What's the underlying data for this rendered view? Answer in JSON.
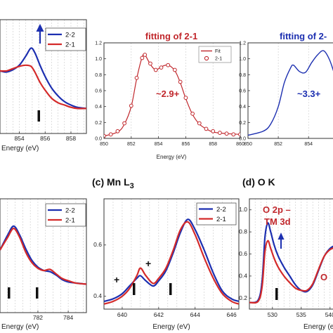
{
  "panels": [
    {
      "id": "mn-l3-top",
      "chart_data": {
        "type": "line",
        "xlabel": "Energy (eV)",
        "x_ticks": [
          "854",
          "856",
          "858"
        ],
        "xlim": [
          852.5,
          859.2
        ],
        "ylim": [
          0,
          1
        ],
        "legend": [
          {
            "name": "2-2",
            "color": "#1c2fb0"
          },
          {
            "name": "2-1",
            "color": "#d42a2a"
          }
        ],
        "series": [
          {
            "name": "2-2",
            "color": "#1c2fb0",
            "x": [
              852.5,
              853.0,
              853.5,
              854.0,
              854.5,
              854.9,
              855.2,
              855.6,
              856.0,
              856.5,
              857.0,
              857.5,
              858.0,
              858.5,
              859.2
            ],
            "y": [
              0.55,
              0.54,
              0.56,
              0.6,
              0.68,
              0.75,
              0.71,
              0.6,
              0.5,
              0.4,
              0.33,
              0.28,
              0.25,
              0.23,
              0.22
            ]
          },
          {
            "name": "2-1",
            "color": "#d42a2a",
            "x": [
              852.5,
              853.0,
              853.5,
              854.0,
              854.5,
              854.9,
              855.2,
              855.6,
              856.0,
              856.5,
              857.0,
              857.5,
              858.0,
              858.5,
              859.2
            ],
            "y": [
              0.55,
              0.55,
              0.57,
              0.59,
              0.6,
              0.59,
              0.54,
              0.45,
              0.38,
              0.31,
              0.27,
              0.25,
              0.23,
              0.22,
              0.22
            ]
          }
        ]
      }
    },
    {
      "id": "fit-2-1",
      "chart_data": {
        "type": "line",
        "title": "fitting of 2-1",
        "annotation": "~2.9+",
        "xlabel": "Energy (eV)",
        "x_ticks": [
          "850",
          "852",
          "854",
          "856",
          "858",
          "860"
        ],
        "y_ticks": [
          "0.0",
          "0.2",
          "0.4",
          "0.6",
          "0.8",
          "1.0",
          "1.2"
        ],
        "xlim": [
          850,
          860
        ],
        "ylim": [
          0,
          1.2
        ],
        "legend": [
          {
            "name": "Fit",
            "marker": "line"
          },
          {
            "name": "2-1",
            "marker": "circle"
          }
        ],
        "series": [
          {
            "name": "Fit",
            "color": "#c0262b",
            "x": [
              850.0,
              851.0,
              851.5,
              852.0,
              852.4,
              852.8,
              853.0,
              853.4,
              853.8,
              854.2,
              854.7,
              855.2,
              855.6,
              856.0,
              856.5,
              857.0,
              857.5,
              858.0,
              859.0,
              860.0
            ],
            "y": [
              0.03,
              0.08,
              0.18,
              0.4,
              0.75,
              1.02,
              1.05,
              0.93,
              0.86,
              0.9,
              0.92,
              0.85,
              0.7,
              0.5,
              0.3,
              0.18,
              0.12,
              0.08,
              0.06,
              0.05
            ]
          },
          {
            "name": "2-1",
            "color": "#c0262b",
            "x": [
              850.0,
              850.5,
              851.0,
              851.5,
              852.0,
              852.4,
              852.8,
              853.0,
              853.4,
              853.8,
              854.2,
              854.7,
              855.2,
              855.6,
              856.0,
              856.5,
              857.0,
              857.5,
              858.0,
              858.5,
              859.0,
              859.5,
              860.0
            ],
            "y": [
              0.03,
              0.05,
              0.09,
              0.19,
              0.41,
              0.76,
              1.01,
              1.05,
              0.94,
              0.86,
              0.89,
              0.92,
              0.86,
              0.71,
              0.51,
              0.31,
              0.19,
              0.12,
              0.09,
              0.07,
              0.06,
              0.05,
              0.05
            ]
          }
        ]
      }
    },
    {
      "id": "fit-2-2",
      "chart_data": {
        "type": "line",
        "title": "fitting of 2-",
        "annotation": "~3.3+",
        "xlabel": "",
        "x_ticks": [
          "850",
          "852",
          "854"
        ],
        "y_ticks": [
          "0.0",
          "0.2",
          "0.4",
          "0.6",
          "0.8",
          "1.0",
          "1.2"
        ],
        "xlim": [
          850,
          855.8
        ],
        "ylim": [
          0,
          1.2
        ],
        "series": [
          {
            "name": "2-2",
            "color": "#1c2fb0",
            "x": [
              850.0,
              851.0,
              851.5,
              852.0,
              852.4,
              852.8,
              853.0,
              853.4,
              853.8,
              854.2,
              854.6,
              855.0,
              855.4,
              855.8
            ],
            "y": [
              0.04,
              0.09,
              0.18,
              0.4,
              0.7,
              0.88,
              0.92,
              0.84,
              0.83,
              0.95,
              1.05,
              1.1,
              0.98,
              0.75
            ]
          }
        ]
      }
    },
    {
      "id": "mn-l2",
      "chart_data": {
        "type": "line",
        "xlabel": "Energy (eV)",
        "x_ticks": [
          "782",
          "784"
        ],
        "xlim": [
          779.5,
          785.2
        ],
        "ylim": [
          0,
          1
        ],
        "legend": [
          {
            "name": "2-2",
            "color": "#1c2fb0"
          },
          {
            "name": "2-1",
            "color": "#d42a2a"
          }
        ],
        "series": [
          {
            "name": "2-2",
            "color": "#1c2fb0",
            "x": [
              779.5,
              780.0,
              780.4,
              780.8,
              781.2,
              781.6,
              782.0,
              782.4,
              782.8,
              783.2,
              783.6,
              784.0,
              784.5,
              785.2
            ],
            "y": [
              0.55,
              0.68,
              0.76,
              0.68,
              0.56,
              0.46,
              0.4,
              0.37,
              0.36,
              0.33,
              0.29,
              0.27,
              0.26,
              0.25
            ]
          },
          {
            "name": "2-1",
            "color": "#d42a2a",
            "x": [
              779.5,
              780.0,
              780.4,
              780.8,
              781.2,
              781.6,
              782.0,
              782.4,
              782.8,
              783.2,
              783.6,
              784.0,
              784.5,
              785.2
            ],
            "y": [
              0.55,
              0.66,
              0.74,
              0.66,
              0.53,
              0.44,
              0.39,
              0.37,
              0.38,
              0.34,
              0.3,
              0.28,
              0.26,
              0.25
            ]
          }
        ]
      }
    },
    {
      "id": "c-mn-l3",
      "title": "(c) Mn L3",
      "chart_data": {
        "type": "line",
        "xlabel": "Energy (eV)",
        "x_ticks": [
          "640",
          "642",
          "644",
          "646"
        ],
        "y_ticks": [
          "0.4",
          "0.6"
        ],
        "xlim": [
          639.0,
          646.4
        ],
        "ylim": [
          0.35,
          0.78
        ],
        "legend": [
          {
            "name": "2-2",
            "color": "#1c2fb0"
          },
          {
            "name": "2-1",
            "color": "#d42a2a"
          }
        ],
        "annotations": [
          "+",
          "+"
        ],
        "series": [
          {
            "name": "2-2",
            "color": "#1c2fb0",
            "x": [
              639.0,
              639.5,
              640.0,
              640.4,
              640.8,
              641.0,
              641.3,
              641.7,
              642.0,
              642.4,
              642.8,
              643.2,
              643.6,
              644.0,
              644.5,
              645.0,
              645.5,
              646.0,
              646.4
            ],
            "y": [
              0.38,
              0.39,
              0.41,
              0.44,
              0.47,
              0.48,
              0.46,
              0.44,
              0.46,
              0.5,
              0.57,
              0.65,
              0.7,
              0.66,
              0.58,
              0.49,
              0.42,
              0.39,
              0.38
            ]
          },
          {
            "name": "2-1",
            "color": "#d42a2a",
            "x": [
              639.0,
              639.5,
              640.0,
              640.4,
              640.8,
              641.0,
              641.3,
              641.7,
              642.0,
              642.4,
              642.8,
              643.2,
              643.6,
              644.0,
              644.5,
              645.0,
              645.5,
              646.0,
              646.4
            ],
            "y": [
              0.37,
              0.38,
              0.4,
              0.43,
              0.48,
              0.51,
              0.48,
              0.45,
              0.47,
              0.51,
              0.58,
              0.66,
              0.69,
              0.64,
              0.55,
              0.47,
              0.41,
              0.38,
              0.37
            ]
          }
        ]
      }
    },
    {
      "id": "d-o-k",
      "title": "(d) O K",
      "chart_data": {
        "type": "line",
        "xlabel": "Energy (eV)",
        "x_ticks": [
          "530",
          "535",
          "540"
        ],
        "y_ticks": [
          "0.2",
          "0.4",
          "0.6",
          "0.8",
          "1.0"
        ],
        "xlim": [
          526,
          541
        ],
        "ylim": [
          0.1,
          1.1
        ],
        "annotations": [
          "O 2p –",
          "TM 3d",
          "O"
        ],
        "series": [
          {
            "name": "2-2",
            "color": "#1c2fb0",
            "x": [
              526.0,
              527.5,
              528.2,
              528.7,
              529.2,
              529.7,
              530.3,
              531.0,
              532.0,
              533.0,
              534.0,
              535.0,
              536.0,
              537.0,
              538.0,
              539.0,
              540.0,
              541.0
            ],
            "y": [
              0.16,
              0.18,
              0.35,
              0.75,
              0.88,
              0.8,
              0.68,
              0.58,
              0.48,
              0.4,
              0.32,
              0.27,
              0.26,
              0.32,
              0.45,
              0.58,
              0.65,
              0.68
            ]
          },
          {
            "name": "2-1",
            "color": "#d42a2a",
            "x": [
              526.0,
              527.5,
              528.2,
              528.7,
              529.2,
              529.7,
              530.3,
              531.0,
              532.0,
              533.0,
              534.0,
              535.0,
              536.0,
              537.0,
              538.0,
              539.0,
              540.0,
              541.0
            ],
            "y": [
              0.16,
              0.17,
              0.3,
              0.62,
              0.72,
              0.65,
              0.56,
              0.48,
              0.4,
              0.34,
              0.29,
              0.27,
              0.27,
              0.33,
              0.46,
              0.58,
              0.64,
              0.66
            ]
          }
        ]
      }
    }
  ]
}
